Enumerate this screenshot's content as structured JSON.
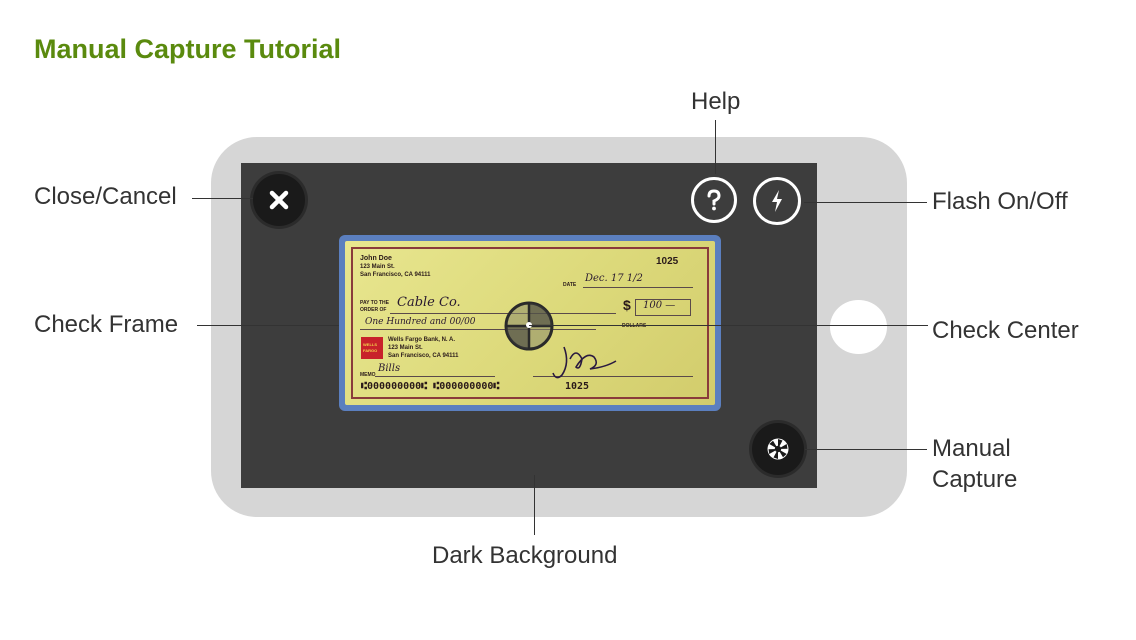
{
  "page": {
    "title": "Manual Capture Tutorial"
  },
  "callouts": {
    "help": "Help",
    "close": "Close/Cancel",
    "flash": "Flash On/Off",
    "check_frame": "Check Frame",
    "check_center": "Check Center",
    "manual_capture_line1": "Manual",
    "manual_capture_line2": "Capture",
    "dark_background": "Dark Background"
  },
  "icons": {
    "close": "close-icon",
    "help": "question-icon",
    "flash": "lightning-icon",
    "capture": "camera-shutter-icon",
    "center": "crosshair-icon"
  },
  "check": {
    "name": "John Doe",
    "address1": "123 Main St.",
    "address2": "San Francisco, CA 94111",
    "number": "1025",
    "date_label": "DATE",
    "date_value": "Dec. 17 1/2",
    "pay_label_1": "PAY TO THE",
    "pay_label_2": "ORDER OF",
    "payee": "Cable Co.",
    "dollar_sign": "$",
    "amount": "100 —",
    "amount_words": "One Hundred and 00/00",
    "bank_logo_1": "WELLS",
    "bank_logo_2": "FARGO",
    "bank_name": "Wells Fargo Bank, N. A.",
    "bank_address1": "123 Main St.",
    "bank_address2": "San Francisco, CA 94111",
    "memo_label": "MEMO",
    "memo": "Bills",
    "routing": "⑆000000000⑆ ⑆000000000⑆",
    "micr_number": "1025"
  },
  "colors": {
    "title": "#5a8a0e",
    "phone_body": "#d6d6d6",
    "screen": "#3d3d3d",
    "frame": "#5b7fbf",
    "check": "#e0dd80"
  }
}
